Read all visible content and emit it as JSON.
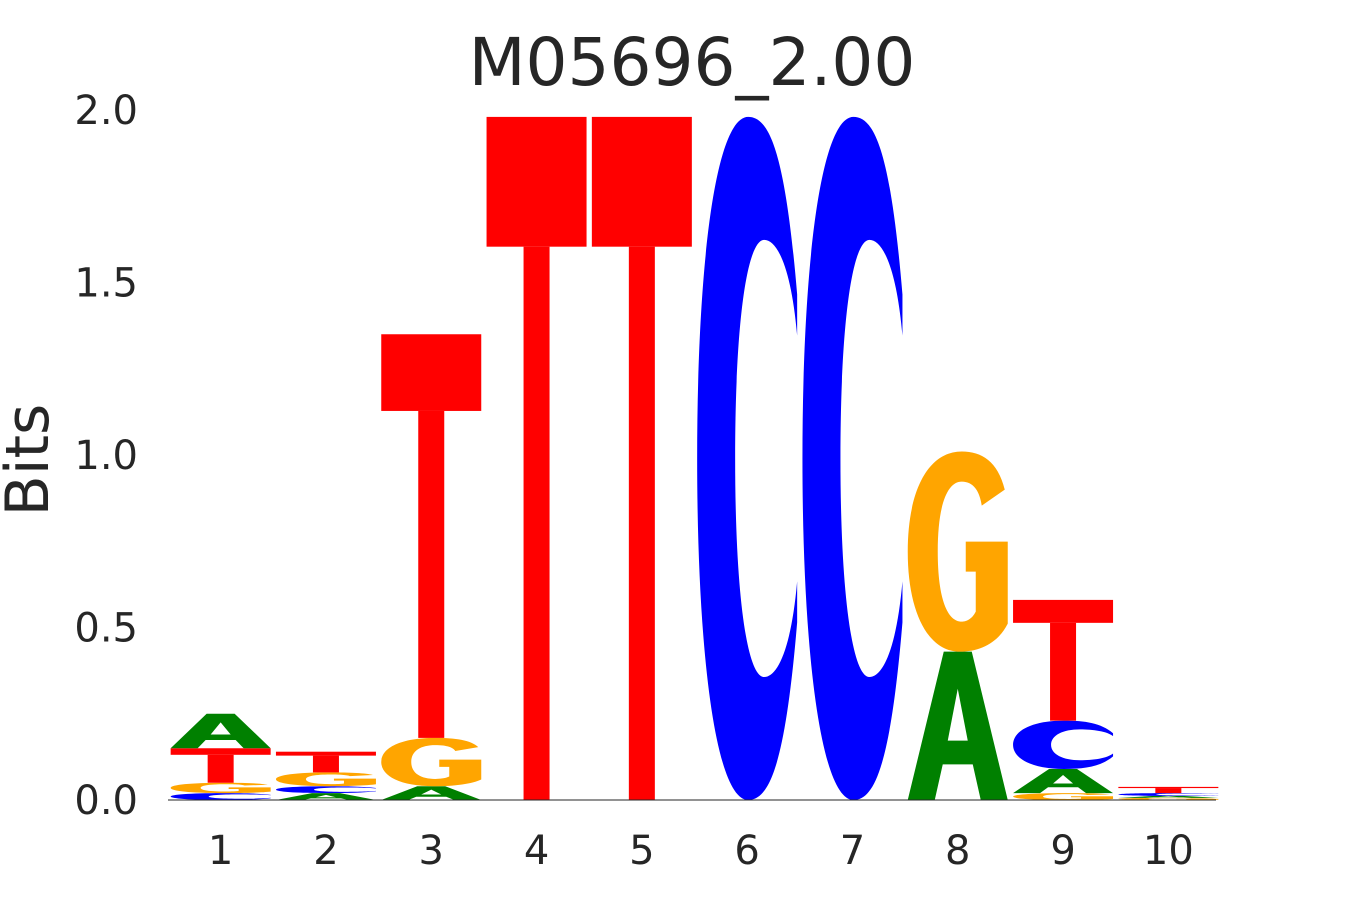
{
  "chart_data": {
    "type": "sequence-logo",
    "title": "M05696_2.00",
    "xlabel": "",
    "ylabel": "Bits",
    "ylim": [
      0,
      2.0
    ],
    "y_ticks": [
      "0.0",
      "0.5",
      "1.0",
      "1.5",
      "2.0"
    ],
    "y_tick_values": [
      0,
      0.5,
      1.0,
      1.5,
      2.0
    ],
    "x_ticks": [
      "1",
      "2",
      "3",
      "4",
      "5",
      "6",
      "7",
      "8",
      "9",
      "10"
    ],
    "colors": {
      "A": "#008000",
      "C": "#0000ff",
      "G": "#ffa500",
      "T": "#ff0000"
    },
    "positions": [
      {
        "pos": "1",
        "stack": [
          {
            "base": "C",
            "bits": 0.02
          },
          {
            "base": "G",
            "bits": 0.03
          },
          {
            "base": "T",
            "bits": 0.1
          },
          {
            "base": "A",
            "bits": 0.1
          }
        ]
      },
      {
        "pos": "2",
        "stack": [
          {
            "base": "A",
            "bits": 0.02
          },
          {
            "base": "C",
            "bits": 0.02
          },
          {
            "base": "G",
            "bits": 0.04
          },
          {
            "base": "T",
            "bits": 0.06
          }
        ]
      },
      {
        "pos": "3",
        "stack": [
          {
            "base": "A",
            "bits": 0.04
          },
          {
            "base": "G",
            "bits": 0.14
          },
          {
            "base": "T",
            "bits": 1.17
          }
        ]
      },
      {
        "pos": "4",
        "stack": [
          {
            "base": "T",
            "bits": 1.98
          }
        ]
      },
      {
        "pos": "5",
        "stack": [
          {
            "base": "T",
            "bits": 1.98
          }
        ]
      },
      {
        "pos": "6",
        "stack": [
          {
            "base": "C",
            "bits": 1.98
          }
        ]
      },
      {
        "pos": "7",
        "stack": [
          {
            "base": "C",
            "bits": 1.98
          }
        ]
      },
      {
        "pos": "8",
        "stack": [
          {
            "base": "A",
            "bits": 0.43
          },
          {
            "base": "G",
            "bits": 0.58
          }
        ]
      },
      {
        "pos": "9",
        "stack": [
          {
            "base": "G",
            "bits": 0.02
          },
          {
            "base": "A",
            "bits": 0.07
          },
          {
            "base": "C",
            "bits": 0.14
          },
          {
            "base": "T",
            "bits": 0.35
          }
        ]
      },
      {
        "pos": "10",
        "stack": [
          {
            "base": "G",
            "bits": 0.006
          },
          {
            "base": "A",
            "bits": 0.006
          },
          {
            "base": "C",
            "bits": 0.008
          },
          {
            "base": "T",
            "bits": 0.018
          }
        ]
      }
    ]
  }
}
